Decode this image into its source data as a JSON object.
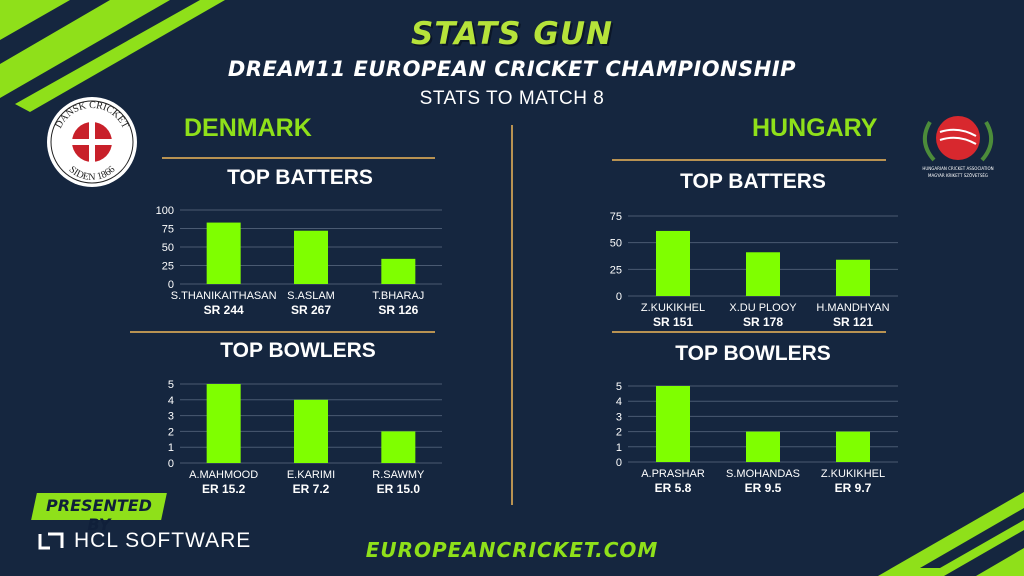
{
  "header": {
    "title": "STATS GUN",
    "subtitle": "DREAM11 EUROPEAN CRICKET CHAMPIONSHIP",
    "stats_to": "STATS TO MATCH 8"
  },
  "teams": {
    "left": {
      "name": "DENMARK",
      "logo_text_top": "DANSK CRICKET",
      "logo_text_bottom": "SIDEN 1866"
    },
    "right": {
      "name": "HUNGARY",
      "logo_text_top": "HUNGARIAN CRICKET ASSOCIATION",
      "logo_text_bottom": "MAGYAR KRIKETT SZÖVETSÉG"
    }
  },
  "sections": {
    "batters_title": "TOP BATTERS",
    "bowlers_title": "TOP BOWLERS"
  },
  "footer": {
    "presented_by": "PRESENTED BY",
    "sponsor": "HCL SOFTWARE",
    "url": "EUROPEANCRICKET.COM"
  },
  "colors": {
    "background": "#15263f",
    "bar": "#7fff00",
    "accent_green": "#8fe01a",
    "gold": "#b89252",
    "grid": "#4a5a72"
  },
  "chart_data": [
    {
      "id": "denmark-batters",
      "type": "bar",
      "categories": [
        "S.THANIKAITHASAN",
        "S.ASLAM",
        "T.BHARAJ"
      ],
      "values": [
        83,
        72,
        34
      ],
      "sublabels": [
        "SR 244",
        "SR 267",
        "SR 126"
      ],
      "yticks": [
        0,
        25,
        50,
        75,
        100
      ],
      "ylim": [
        0,
        100
      ],
      "grid": true
    },
    {
      "id": "denmark-bowlers",
      "type": "bar",
      "categories": [
        "A.MAHMOOD",
        "E.KARIMI",
        "R.SAWMY"
      ],
      "values": [
        5,
        4,
        2
      ],
      "sublabels": [
        "ER 15.2",
        "ER 7.2",
        "ER 15.0"
      ],
      "yticks": [
        0,
        1,
        2,
        3,
        4,
        5
      ],
      "ylim": [
        0,
        5
      ],
      "grid": true
    },
    {
      "id": "hungary-batters",
      "type": "bar",
      "categories": [
        "Z.KUKIKHEL",
        "X.DU PLOOY",
        "H.MANDHYAN"
      ],
      "values": [
        61,
        41,
        34
      ],
      "sublabels": [
        "SR 151",
        "SR 178",
        "SR 121"
      ],
      "yticks": [
        0,
        25,
        50,
        75
      ],
      "ylim": [
        0,
        75
      ],
      "grid": true
    },
    {
      "id": "hungary-bowlers",
      "type": "bar",
      "categories": [
        "A.PRASHAR",
        "S.MOHANDAS",
        "Z.KUKIKHEL"
      ],
      "values": [
        5,
        2,
        2
      ],
      "sublabels": [
        "ER 5.8",
        "ER 9.5",
        "ER 9.7"
      ],
      "yticks": [
        0,
        1,
        2,
        3,
        4,
        5
      ],
      "ylim": [
        0,
        5
      ],
      "grid": true
    }
  ]
}
